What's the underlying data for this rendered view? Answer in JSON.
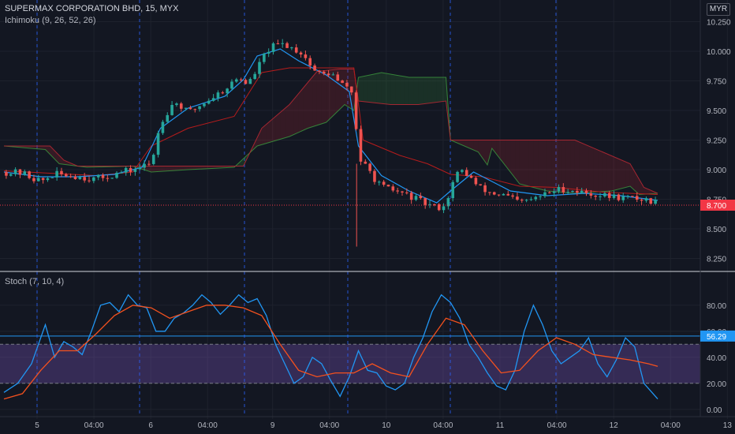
{
  "header": {
    "symbol_title": "SUPERMAX CORPORATION BHD, 15, MYX",
    "ichimoku_label": "Ichimoku (9, 26, 52, 26)",
    "stoch_label": "Stoch (7, 10, 4)",
    "currency": "MYR"
  },
  "colors": {
    "background": "#131722",
    "up_candle": "#26a69a",
    "down_candle": "#ef5350",
    "conversion_line": "#2196f3",
    "base_line": "#b71c1c",
    "leading_span_a": "#388e3c",
    "leading_span_b": "#b22833",
    "stoch_k": "#2196f3",
    "stoch_d": "#f4511e",
    "stoch_band": "#7e57c2",
    "session_line": "#2962ff",
    "price_tag": "#f23645",
    "stoch_tag": "#2196f3"
  },
  "chart_data": [
    {
      "type": "candlestick",
      "title": "SUPERMAX CORPORATION BHD, 15, MYX",
      "indicator": "Ichimoku (9, 26, 52, 26)",
      "x_tick_labels": [
        "5",
        "04:00",
        "6",
        "04:00",
        "9",
        "04:00",
        "10",
        "04:00",
        "11",
        "04:00",
        "12",
        "04:00",
        "13"
      ],
      "y_tick_labels": [
        "10.250",
        "10.000",
        "9.750",
        "9.500",
        "9.250",
        "9.000",
        "8.750",
        "8.500",
        "8.250"
      ],
      "ylim": [
        8.2,
        10.3
      ],
      "last_price": 8.7,
      "last_price_label": "8.700",
      "price_anchors": [
        [
          0,
          8.98
        ],
        [
          4,
          8.97
        ],
        [
          8,
          8.9
        ],
        [
          11,
          8.96
        ],
        [
          15,
          8.95
        ],
        [
          20,
          8.92
        ],
        [
          24,
          8.96
        ],
        [
          28,
          9.0
        ],
        [
          32,
          9.05
        ],
        [
          34,
          9.4
        ],
        [
          37,
          9.58
        ],
        [
          40,
          9.48
        ],
        [
          44,
          9.58
        ],
        [
          48,
          9.68
        ],
        [
          51,
          9.78
        ],
        [
          53,
          9.72
        ],
        [
          55,
          9.85
        ],
        [
          57,
          10.0
        ],
        [
          59,
          10.05
        ],
        [
          61,
          10.06
        ],
        [
          63,
          10.02
        ],
        [
          65,
          9.98
        ],
        [
          67,
          9.85
        ],
        [
          69,
          9.8
        ],
        [
          71,
          9.82
        ],
        [
          73,
          9.72
        ],
        [
          75,
          9.7
        ],
        [
          76,
          9.6
        ],
        [
          77,
          9.1
        ],
        [
          79,
          9.0
        ],
        [
          82,
          8.85
        ],
        [
          85,
          8.82
        ],
        [
          88,
          8.78
        ],
        [
          91,
          8.72
        ],
        [
          94,
          8.68
        ],
        [
          96,
          8.7
        ],
        [
          97,
          8.85
        ],
        [
          99,
          9.0
        ],
        [
          101,
          8.95
        ],
        [
          103,
          8.85
        ],
        [
          106,
          8.8
        ],
        [
          109,
          8.78
        ],
        [
          112,
          8.72
        ],
        [
          115,
          8.75
        ],
        [
          118,
          8.8
        ],
        [
          121,
          8.84
        ],
        [
          124,
          8.82
        ],
        [
          127,
          8.8
        ],
        [
          130,
          8.78
        ],
        [
          133,
          8.77
        ],
        [
          136,
          8.76
        ],
        [
          139,
          8.75
        ],
        [
          142,
          8.72
        ]
      ],
      "conversion_line": [
        [
          0,
          8.98
        ],
        [
          8,
          8.94
        ],
        [
          16,
          8.94
        ],
        [
          24,
          8.96
        ],
        [
          30,
          9.02
        ],
        [
          34,
          9.35
        ],
        [
          40,
          9.52
        ],
        [
          48,
          9.62
        ],
        [
          52,
          9.76
        ],
        [
          55,
          9.96
        ],
        [
          60,
          10.02
        ],
        [
          64,
          9.92
        ],
        [
          70,
          9.8
        ],
        [
          75,
          9.66
        ],
        [
          77,
          9.2
        ],
        [
          82,
          8.95
        ],
        [
          88,
          8.82
        ],
        [
          94,
          8.72
        ],
        [
          97,
          8.82
        ],
        [
          102,
          8.98
        ],
        [
          110,
          8.82
        ],
        [
          118,
          8.78
        ],
        [
          126,
          8.8
        ],
        [
          134,
          8.78
        ],
        [
          142,
          8.74
        ]
      ],
      "base_line": [
        [
          0,
          8.99
        ],
        [
          10,
          8.97
        ],
        [
          20,
          8.95
        ],
        [
          28,
          8.98
        ],
        [
          32,
          9.2
        ],
        [
          40,
          9.35
        ],
        [
          50,
          9.45
        ],
        [
          56,
          9.82
        ],
        [
          62,
          9.86
        ],
        [
          70,
          9.86
        ],
        [
          76,
          9.86
        ],
        [
          78,
          9.25
        ],
        [
          86,
          9.12
        ],
        [
          92,
          9.05
        ],
        [
          97,
          8.96
        ],
        [
          104,
          8.94
        ],
        [
          112,
          8.86
        ],
        [
          120,
          8.85
        ],
        [
          130,
          8.81
        ],
        [
          142,
          8.79
        ]
      ],
      "leading_span_a": [
        [
          0,
          9.2
        ],
        [
          9,
          9.17
        ],
        [
          12,
          9.05
        ],
        [
          18,
          9.02
        ],
        [
          28,
          9.03
        ],
        [
          32,
          8.98
        ],
        [
          40,
          9.0
        ],
        [
          50,
          9.02
        ],
        [
          55,
          9.2
        ],
        [
          62,
          9.28
        ],
        [
          66,
          9.35
        ],
        [
          70,
          9.4
        ],
        [
          74,
          9.55
        ],
        [
          76,
          9.5
        ],
        [
          77,
          9.78
        ],
        [
          82,
          9.82
        ],
        [
          88,
          9.78
        ],
        [
          96,
          9.78
        ],
        [
          97,
          9.25
        ],
        [
          103,
          9.15
        ],
        [
          105,
          9.04
        ],
        [
          106,
          9.18
        ],
        [
          112,
          8.88
        ],
        [
          118,
          8.82
        ],
        [
          124,
          8.8
        ],
        [
          132,
          8.82
        ],
        [
          136,
          8.86
        ],
        [
          138,
          8.79
        ],
        [
          142,
          8.8
        ]
      ],
      "leading_span_b": [
        [
          0,
          9.2
        ],
        [
          10,
          9.2
        ],
        [
          13,
          9.08
        ],
        [
          16,
          9.03
        ],
        [
          28,
          9.03
        ],
        [
          38,
          9.03
        ],
        [
          46,
          9.03
        ],
        [
          52,
          9.03
        ],
        [
          56,
          9.35
        ],
        [
          62,
          9.55
        ],
        [
          68,
          9.83
        ],
        [
          73,
          9.85
        ],
        [
          76,
          9.85
        ],
        [
          77,
          9.58
        ],
        [
          84,
          9.55
        ],
        [
          90,
          9.55
        ],
        [
          96,
          9.58
        ],
        [
          97,
          9.25
        ],
        [
          106,
          9.25
        ],
        [
          124,
          9.25
        ],
        [
          130,
          9.15
        ],
        [
          136,
          9.05
        ],
        [
          139,
          8.85
        ],
        [
          142,
          8.8
        ]
      ]
    },
    {
      "type": "line",
      "title": "Stoch (7, 10, 4)",
      "y_tick_labels": [
        "80.00",
        "60.00",
        "40.00",
        "20.00",
        "0.00"
      ],
      "ylim": [
        -5,
        95
      ],
      "band": [
        20,
        50
      ],
      "upper_level": 56.29,
      "stoch_label_value": "56.29",
      "series": [
        {
          "role": "k",
          "values": [
            [
              0,
              13
            ],
            [
              3,
              20
            ],
            [
              6,
              35
            ],
            [
              9,
              65
            ],
            [
              11,
              40
            ],
            [
              13,
              52
            ],
            [
              15,
              48
            ],
            [
              17,
              42
            ],
            [
              19,
              60
            ],
            [
              21,
              80
            ],
            [
              23,
              82
            ],
            [
              25,
              75
            ],
            [
              27,
              88
            ],
            [
              29,
              80
            ],
            [
              31,
              78
            ],
            [
              33,
              60
            ],
            [
              35,
              60
            ],
            [
              37,
              70
            ],
            [
              39,
              74
            ],
            [
              41,
              80
            ],
            [
              43,
              88
            ],
            [
              45,
              82
            ],
            [
              47,
              73
            ],
            [
              49,
              80
            ],
            [
              51,
              88
            ],
            [
              53,
              82
            ],
            [
              55,
              85
            ],
            [
              57,
              72
            ],
            [
              59,
              50
            ],
            [
              61,
              35
            ],
            [
              63,
              20
            ],
            [
              65,
              25
            ],
            [
              67,
              40
            ],
            [
              69,
              35
            ],
            [
              71,
              22
            ],
            [
              73,
              10
            ],
            [
              75,
              25
            ],
            [
              77,
              45
            ],
            [
              79,
              30
            ],
            [
              81,
              28
            ],
            [
              83,
              18
            ],
            [
              85,
              15
            ],
            [
              87,
              20
            ],
            [
              89,
              40
            ],
            [
              91,
              55
            ],
            [
              93,
              75
            ],
            [
              95,
              88
            ],
            [
              97,
              82
            ],
            [
              99,
              70
            ],
            [
              101,
              50
            ],
            [
              103,
              40
            ],
            [
              105,
              28
            ],
            [
              107,
              18
            ],
            [
              109,
              15
            ],
            [
              111,
              30
            ],
            [
              113,
              60
            ],
            [
              115,
              80
            ],
            [
              117,
              65
            ],
            [
              119,
              45
            ],
            [
              121,
              35
            ],
            [
              123,
              40
            ],
            [
              125,
              45
            ],
            [
              127,
              55
            ],
            [
              129,
              35
            ],
            [
              131,
              25
            ],
            [
              133,
              38
            ],
            [
              135,
              55
            ],
            [
              137,
              48
            ],
            [
              139,
              20
            ],
            [
              142,
              8
            ]
          ]
        },
        {
          "role": "d",
          "values": [
            [
              0,
              8
            ],
            [
              4,
              12
            ],
            [
              8,
              30
            ],
            [
              12,
              45
            ],
            [
              16,
              45
            ],
            [
              20,
              58
            ],
            [
              24,
              72
            ],
            [
              28,
              80
            ],
            [
              32,
              78
            ],
            [
              36,
              70
            ],
            [
              40,
              75
            ],
            [
              44,
              80
            ],
            [
              48,
              80
            ],
            [
              52,
              78
            ],
            [
              56,
              72
            ],
            [
              60,
              50
            ],
            [
              64,
              30
            ],
            [
              68,
              25
            ],
            [
              72,
              28
            ],
            [
              76,
              28
            ],
            [
              80,
              35
            ],
            [
              84,
              28
            ],
            [
              88,
              25
            ],
            [
              92,
              50
            ],
            [
              96,
              70
            ],
            [
              100,
              65
            ],
            [
              104,
              45
            ],
            [
              108,
              28
            ],
            [
              112,
              30
            ],
            [
              116,
              45
            ],
            [
              120,
              55
            ],
            [
              124,
              50
            ],
            [
              128,
              42
            ],
            [
              132,
              40
            ],
            [
              136,
              38
            ],
            [
              140,
              35
            ],
            [
              142,
              33
            ]
          ]
        }
      ]
    }
  ]
}
